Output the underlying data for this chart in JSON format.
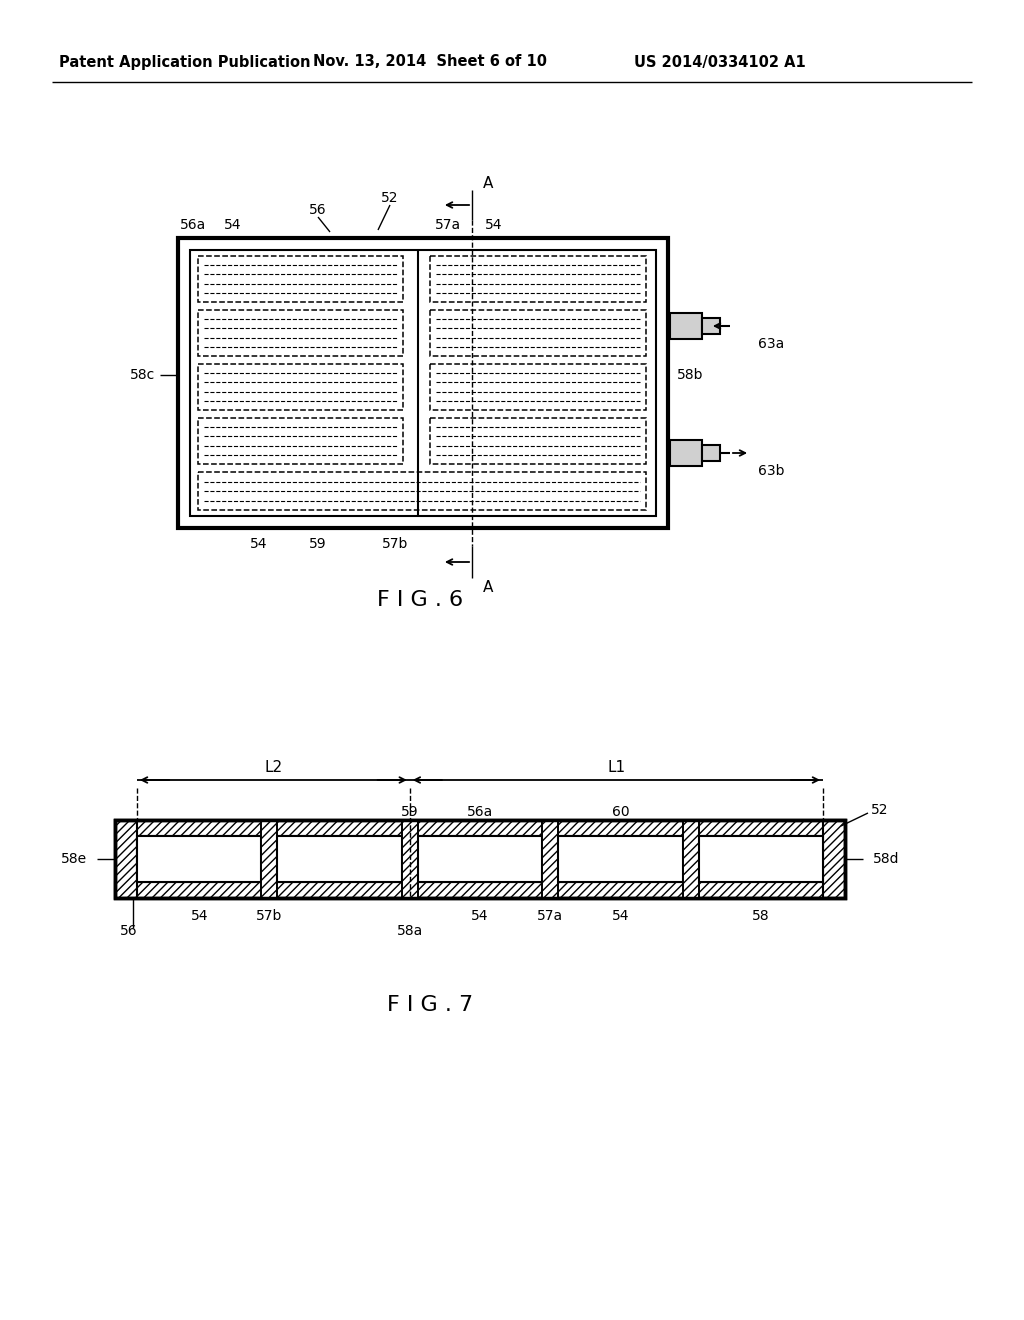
{
  "bg_color": "#ffffff",
  "line_color": "#000000",
  "header_left": "Patent Application Publication",
  "header_mid": "Nov. 13, 2014  Sheet 6 of 10",
  "header_right": "US 2014/0334102 A1",
  "fig6_title": "F I G . 6",
  "fig7_title": "F I G . 7"
}
